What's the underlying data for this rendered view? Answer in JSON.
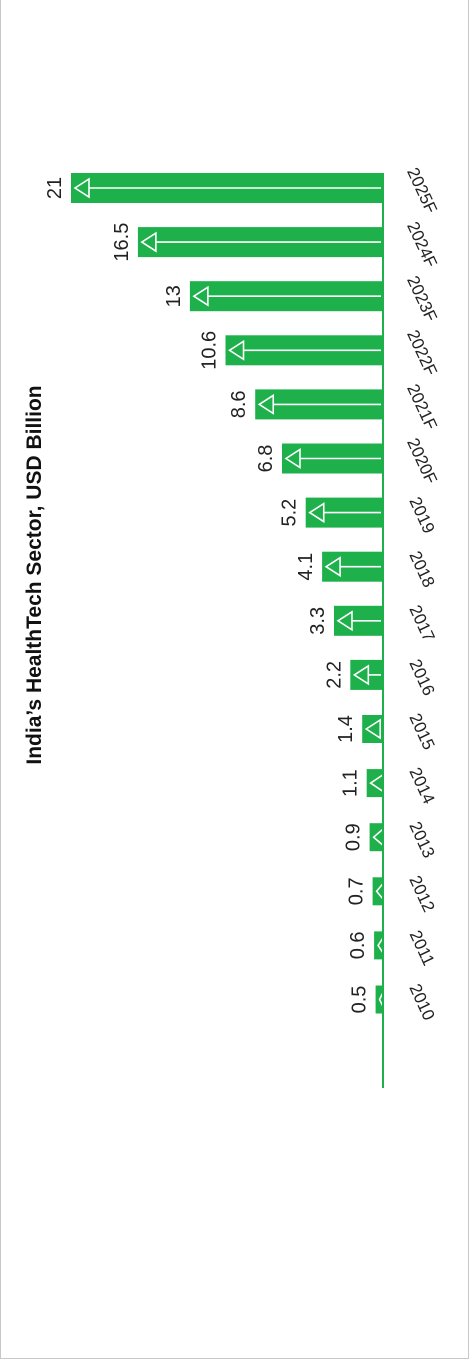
{
  "chart_data": {
    "type": "bar",
    "title": "India’s HealthTech Sector, USD Billion",
    "categories": [
      "2010",
      "2011",
      "2012",
      "2013",
      "2014",
      "2015",
      "2016",
      "2017",
      "2018",
      "2019",
      "2020F",
      "2021F",
      "2022F",
      "2023F",
      "2024F",
      "2025F"
    ],
    "values": [
      0.5,
      0.6,
      0.7,
      0.9,
      1.1,
      1.4,
      2.2,
      3.3,
      4.1,
      5.2,
      6.8,
      8.6,
      10.6,
      13,
      16.5,
      21
    ],
    "value_labels": [
      "0.5",
      "0.6",
      "0.7",
      "0.9",
      "1.1",
      "1.4",
      "2.2",
      "3.3",
      "4.1",
      "5.2",
      "6.8",
      "8.6",
      "10.6",
      "13",
      "16.5",
      "21"
    ],
    "xlabel": "",
    "ylabel": "",
    "ylim": [
      0,
      21
    ],
    "grid": false,
    "legend": "none",
    "colors": {
      "bar": "#1db04b",
      "axis": "#1db04b",
      "arrow": "#ffffff"
    }
  }
}
